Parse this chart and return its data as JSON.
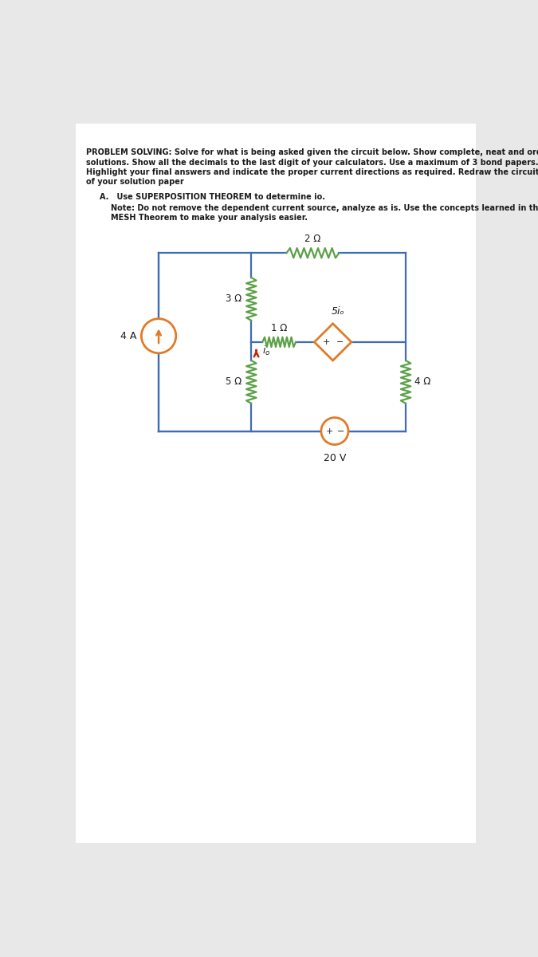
{
  "bg_color": "#e8e8e8",
  "page_bg": "#ffffff",
  "header_text_line1": "PROBLEM SOLVING: Solve for what is being asked given the circuit below. Show complete, neat and ordered",
  "header_text_line2": "solutions. Show all the decimals to the last digit of your calculators. Use a maximum of 3 bond papers.",
  "header_text_line3": "Highlight your final answers and indicate the proper current directions as required. Redraw the circuit as part",
  "header_text_line4": "of your solution paper",
  "subheader_a": "A.   Use SUPERPOSITION THEOREM to determine io.",
  "note_line1": "Note: Do not remove the dependent current source, analyze as is. Use the concepts learned in the",
  "note_line2": "MESH Theorem to make your analysis easier.",
  "wire_color": "#3E6DB5",
  "resistor_color": "#5BA147",
  "source_color": "#E07B2A",
  "arrow_color": "#CC2200",
  "text_color": "#1a1a1a",
  "res2_label": "2 Ω",
  "res3_label": "3 Ω",
  "res1_label": "1 Ω",
  "res5_label": "5 Ω",
  "res4_label": "4 Ω",
  "dep_label": "5iₒ",
  "vs_label": "20 V",
  "cs_label": "4 A",
  "io_label": "iₒ"
}
